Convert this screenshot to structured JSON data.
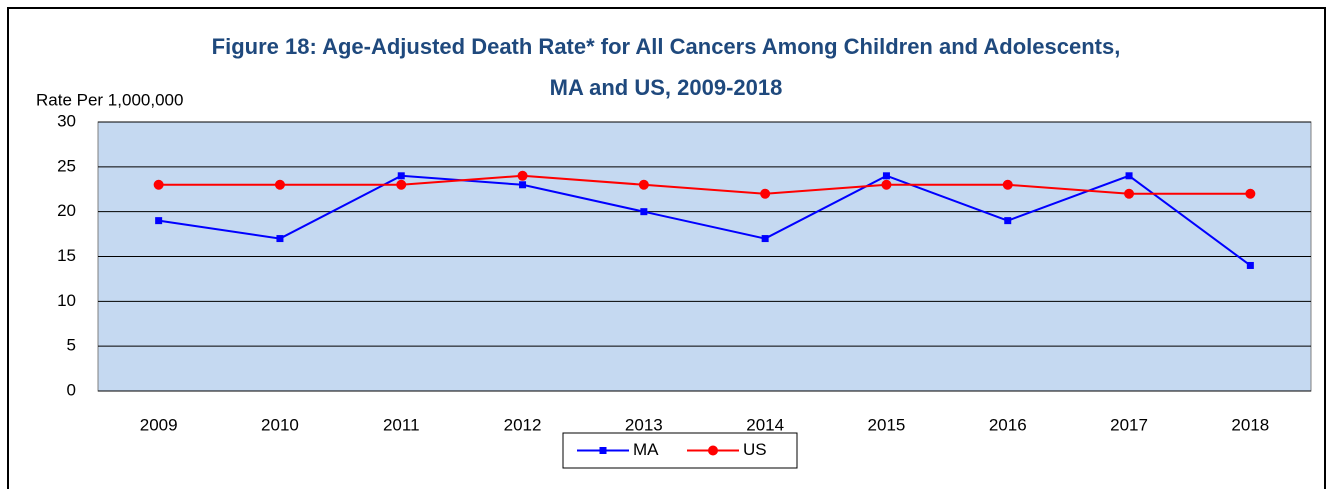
{
  "chart_data": {
    "type": "line",
    "title": [
      "Figure 18: Age-Adjusted Death Rate* for All Cancers Among Children and Adolescents,",
      "MA and US, 2009-2018"
    ],
    "y_label": "Rate Per 1,000,000",
    "categories": [
      "2009",
      "2010",
      "2011",
      "2012",
      "2013",
      "2014",
      "2015",
      "2016",
      "2017",
      "2018"
    ],
    "series": [
      {
        "name": "MA",
        "color": "#0000ff",
        "marker": "square",
        "values": [
          19,
          17,
          24,
          23,
          20,
          17,
          24,
          19,
          24,
          14
        ]
      },
      {
        "name": "US",
        "color": "#ff0000",
        "marker": "circle",
        "values": [
          23,
          23,
          23,
          24,
          23,
          22,
          23,
          23,
          22,
          22
        ]
      }
    ],
    "ylim": [
      0,
      30
    ],
    "yticks": [
      0,
      5,
      10,
      15,
      20,
      25,
      30
    ],
    "grid": true,
    "legend": "bottom"
  }
}
